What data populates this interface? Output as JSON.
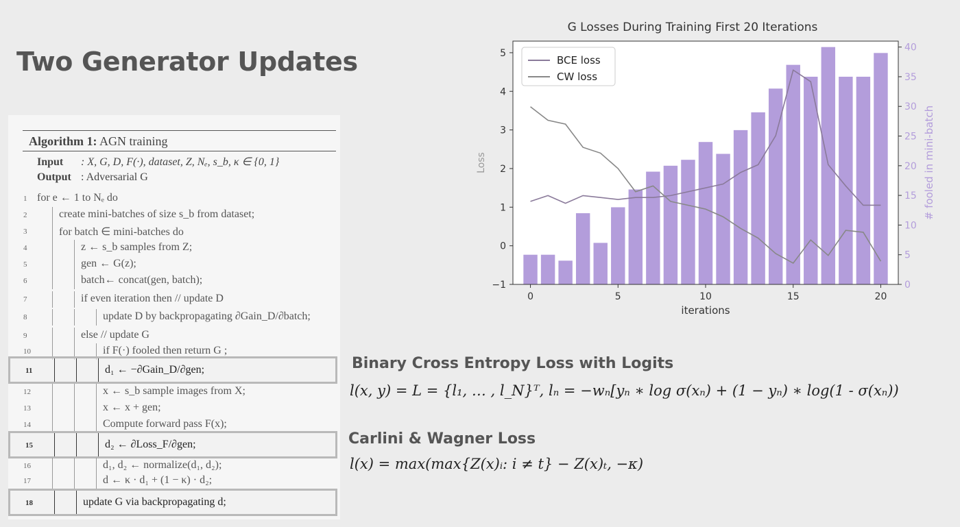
{
  "slide": {
    "title": "Two Generator Updates"
  },
  "algorithm": {
    "header_bold": "Algorithm 1:",
    "header_text": "AGN training",
    "input_label": "Input",
    "input_text": ": X, G, D, F(·), dataset, Z, Nₑ, s_b, κ ∈ {0, 1}",
    "output_label": "Output",
    "output_text": ": Adversarial G",
    "lines": [
      {
        "no": "1",
        "text": "for e ← 1 to Nₑ do"
      },
      {
        "no": "2",
        "text": "create mini-batches of size s_b from dataset;"
      },
      {
        "no": "3",
        "text": "for batch ∈ mini-batches do"
      },
      {
        "no": "4",
        "text": "z ← s_b samples from Z;"
      },
      {
        "no": "5",
        "text": "gen ← G(z);"
      },
      {
        "no": "6",
        "text": "batch← concat(gen, batch);"
      },
      {
        "no": "7",
        "text": "if even iteration then // update D"
      },
      {
        "no": "8",
        "text": "update D by backpropagating ∂Gain_D/∂batch;"
      },
      {
        "no": "9",
        "text": "else // update G"
      },
      {
        "no": "10",
        "text": "if F(·) fooled then return G ;"
      },
      {
        "no": "11",
        "text": "d₁ ← −∂Gain_D/∂gen;"
      },
      {
        "no": "12",
        "text": "x ← s_b sample images from X;"
      },
      {
        "no": "13",
        "text": "x ← x + gen;"
      },
      {
        "no": "14",
        "text": "Compute forward pass F(x);"
      },
      {
        "no": "15",
        "text": "d₂ ← ∂Loss_F/∂gen;"
      },
      {
        "no": "16",
        "text": "d₁, d₂ ← normalize(d₁, d₂);"
      },
      {
        "no": "17",
        "text": "d ← κ · d₁ + (1 − κ) · d₂;"
      },
      {
        "no": "18",
        "text": "update G via backpropagating d;"
      }
    ]
  },
  "chart_data": {
    "type": "bar+line",
    "title": "G Losses During Training First 20 Iterations",
    "xlabel": "iterations",
    "ylabel_left": "Loss",
    "ylabel_right": "# fooled in mini-batch",
    "xlim": [
      -1,
      21
    ],
    "ylim_left": [
      -1,
      5.3
    ],
    "ylim_right": [
      0,
      41
    ],
    "x_ticks": [
      0,
      5,
      10,
      15,
      20
    ],
    "y_left_ticks": [
      -1,
      0,
      1,
      2,
      3,
      4,
      5
    ],
    "y_right_ticks": [
      0,
      5,
      10,
      15,
      20,
      25,
      30,
      35,
      40
    ],
    "x": [
      0,
      1,
      2,
      3,
      4,
      5,
      6,
      7,
      8,
      9,
      10,
      11,
      12,
      13,
      14,
      15,
      16,
      17,
      18,
      19,
      20
    ],
    "bars": {
      "name": "# fooled in mini-batch",
      "color": "#b39ddb",
      "values": [
        5,
        5,
        4,
        12,
        7,
        13,
        16,
        19,
        20,
        21,
        24,
        22,
        26,
        29,
        33,
        37,
        35,
        40,
        35,
        35,
        39
      ]
    },
    "series": [
      {
        "name": "BCE loss",
        "color": "#8a7a9a",
        "values": [
          1.15,
          1.3,
          1.1,
          1.3,
          1.25,
          1.2,
          1.25,
          1.25,
          1.3,
          1.4,
          1.5,
          1.6,
          1.9,
          2.1,
          2.85,
          4.55,
          4.25,
          2.1,
          1.55,
          1.05,
          1.05
        ]
      },
      {
        "name": "CW loss",
        "color": "#888888",
        "values": [
          3.6,
          3.25,
          3.15,
          2.55,
          2.4,
          2.0,
          1.4,
          1.55,
          1.15,
          1.05,
          0.95,
          0.75,
          0.45,
          0.2,
          -0.2,
          -0.45,
          0.15,
          -0.25,
          0.4,
          0.35,
          -0.4
        ]
      }
    ],
    "legend_position": "top-left"
  },
  "formulas": {
    "bce_title": "Binary Cross Entropy Loss with Logits",
    "bce_formula": "l(x, y) = L = {l₁, … , l_N}ᵀ,  lₙ = −wₙ[yₙ ∗ log σ(xₙ) +  (1 − yₙ) ∗ log(1 - σ(xₙ))",
    "cw_title": "Carlini & Wagner Loss",
    "cw_formula": "l(x) = max(max{Z(x)ᵢ: i ≠ t} − Z(x)ₜ, −κ)"
  }
}
